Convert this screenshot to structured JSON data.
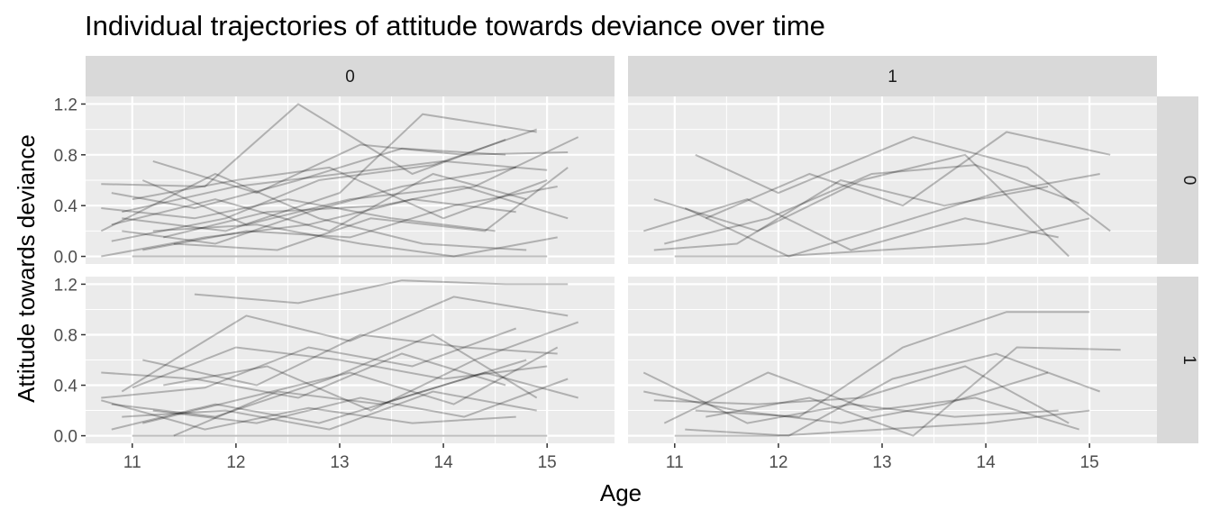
{
  "chart_data": {
    "type": "line",
    "title": "Individual trajectories of attitude towards deviance over time",
    "xlabel": "Age",
    "ylabel": "Attitude towards deviance",
    "xlim": [
      10.55,
      15.65
    ],
    "ylim": [
      -0.06,
      1.26
    ],
    "x_ticks": [
      11,
      12,
      13,
      14,
      15
    ],
    "y_ticks": [
      0.0,
      0.4,
      0.8,
      1.2
    ],
    "y_tick_labels": [
      "0.0",
      "0.4",
      "0.8",
      "1.2"
    ],
    "grid": true,
    "line_color": "#000000",
    "line_alpha": 0.25,
    "facet_columns": [
      "0",
      "1"
    ],
    "facet_rows": [
      "0",
      "1"
    ],
    "panels": [
      {
        "col": "0",
        "row": "0",
        "series": [
          {
            "x": [
              10.7,
              11.7,
              12.6,
              13.7,
              14.6
            ],
            "y": [
              0.57,
              0.55,
              1.2,
              0.65,
              0.92
            ]
          },
          {
            "x": [
              10.8,
              11.9,
              12.8,
              13.9,
              14.9
            ],
            "y": [
              0.12,
              0.3,
              0.6,
              0.72,
              1.0
            ]
          },
          {
            "x": [
              10.9,
              11.8,
              12.7,
              13.6,
              14.7
            ],
            "y": [
              0.2,
              0.1,
              0.35,
              0.55,
              0.7
            ]
          },
          {
            "x": [
              11.0,
              12.0,
              13.0,
              14.0,
              15.0
            ],
            "y": [
              0.0,
              0.0,
              0.0,
              0.0,
              0.0
            ]
          },
          {
            "x": [
              10.7,
              11.6,
              12.5,
              13.5,
              14.5
            ],
            "y": [
              0.38,
              0.3,
              0.45,
              0.3,
              0.2
            ]
          },
          {
            "x": [
              11.1,
              12.1,
              13.1,
              14.1,
              15.1
            ],
            "y": [
              0.05,
              0.2,
              0.15,
              0.4,
              0.55
            ]
          },
          {
            "x": [
              11.2,
              12.2,
              13.2,
              14.2,
              15.2
            ],
            "y": [
              0.75,
              0.5,
              0.88,
              0.8,
              0.82
            ]
          },
          {
            "x": [
              10.8,
              11.8,
              12.9,
              13.9,
              14.8
            ],
            "y": [
              0.25,
              0.45,
              0.2,
              0.65,
              0.45
            ]
          },
          {
            "x": [
              11.3,
              12.3,
              13.4,
              14.3,
              15.3
            ],
            "y": [
              0.15,
              0.35,
              0.4,
              0.55,
              0.94
            ]
          },
          {
            "x": [
              10.9,
              11.9,
              13.0,
              13.8,
              14.9
            ],
            "y": [
              0.3,
              0.2,
              0.5,
              1.12,
              0.98
            ]
          },
          {
            "x": [
              11.0,
              12.0,
              12.9,
              14.0,
              15.0
            ],
            "y": [
              0.45,
              0.6,
              0.7,
              0.3,
              0.6
            ]
          },
          {
            "x": [
              10.7,
              11.7,
              12.7,
              13.7,
              14.7
            ],
            "y": [
              0.0,
              0.15,
              0.25,
              0.45,
              0.35
            ]
          },
          {
            "x": [
              11.4,
              12.4,
              13.3,
              14.4,
              15.2
            ],
            "y": [
              0.1,
              0.05,
              0.3,
              0.2,
              0.7
            ]
          },
          {
            "x": [
              10.8,
              11.6,
              12.6,
              13.6,
              14.6
            ],
            "y": [
              0.5,
              0.38,
              0.6,
              0.85,
              0.8
            ]
          },
          {
            "x": [
              11.2,
              12.2,
              13.2,
              14.1,
              15.1
            ],
            "y": [
              0.2,
              0.25,
              0.1,
              0.0,
              0.15
            ]
          },
          {
            "x": [
              10.9,
              12.0,
              13.0,
              14.0,
              15.0
            ],
            "y": [
              0.35,
              0.55,
              0.65,
              0.75,
              0.68
            ]
          },
          {
            "x": [
              11.1,
              12.1,
              13.1,
              14.2,
              15.2
            ],
            "y": [
              0.6,
              0.25,
              0.45,
              0.55,
              0.3
            ]
          },
          {
            "x": [
              10.7,
              11.8,
              12.8,
              13.8,
              14.8
            ],
            "y": [
              0.2,
              0.65,
              0.3,
              0.1,
              0.05
            ]
          }
        ]
      },
      {
        "col": "1",
        "row": "0",
        "series": [
          {
            "x": [
              10.8,
              11.8,
              12.8,
              13.8,
              14.8
            ],
            "y": [
              0.45,
              0.2,
              0.6,
              0.8,
              0.0
            ]
          },
          {
            "x": [
              11.2,
              12.0,
              13.3,
              14.4,
              15.2
            ],
            "y": [
              0.8,
              0.5,
              0.94,
              0.7,
              0.2
            ]
          },
          {
            "x": [
              10.9,
              11.9,
              12.9,
              13.9,
              14.9
            ],
            "y": [
              0.1,
              0.3,
              0.65,
              0.72,
              0.42
            ]
          },
          {
            "x": [
              11.0,
              12.0,
              13.0,
              14.0,
              15.0
            ],
            "y": [
              0.0,
              0.0,
              0.05,
              0.1,
              0.3
            ]
          },
          {
            "x": [
              10.7,
              11.7,
              12.7,
              13.8,
              14.7
            ],
            "y": [
              0.2,
              0.45,
              0.05,
              0.3,
              0.15
            ]
          },
          {
            "x": [
              11.3,
              12.3,
              13.2,
              14.2,
              15.2
            ],
            "y": [
              0.3,
              0.65,
              0.4,
              0.98,
              0.8
            ]
          },
          {
            "x": [
              10.8,
              11.6,
              12.6,
              13.6,
              14.6
            ],
            "y": [
              0.05,
              0.1,
              0.6,
              0.4,
              0.55
            ]
          },
          {
            "x": [
              11.1,
              12.1,
              13.1,
              14.1,
              15.1
            ],
            "y": [
              0.38,
              0.0,
              0.25,
              0.5,
              0.65
            ]
          }
        ]
      },
      {
        "col": "0",
        "row": "1",
        "series": [
          {
            "x": [
              11.6,
              12.6,
              13.6,
              14.6,
              15.2
            ],
            "y": [
              1.12,
              1.05,
              1.23,
              1.2,
              1.2
            ]
          },
          {
            "x": [
              10.7,
              11.7,
              12.7,
              13.7,
              14.7
            ],
            "y": [
              0.3,
              0.38,
              0.7,
              0.55,
              0.85
            ]
          },
          {
            "x": [
              10.8,
              11.8,
              12.8,
              13.8,
              14.8
            ],
            "y": [
              0.05,
              0.25,
              0.1,
              0.35,
              0.6
            ]
          },
          {
            "x": [
              11.0,
              12.0,
              13.0,
              14.0,
              15.0
            ],
            "y": [
              0.0,
              0.0,
              0.0,
              0.0,
              0.0
            ]
          },
          {
            "x": [
              10.9,
              12.1,
              13.1,
              14.1,
              15.2
            ],
            "y": [
              0.35,
              0.95,
              0.75,
              1.1,
              0.95
            ]
          },
          {
            "x": [
              11.2,
              12.2,
              13.2,
              14.2,
              15.2
            ],
            "y": [
              0.2,
              0.1,
              0.3,
              0.15,
              0.45
            ]
          },
          {
            "x": [
              10.7,
              11.6,
              12.6,
              13.6,
              14.6
            ],
            "y": [
              0.5,
              0.45,
              0.3,
              0.65,
              0.4
            ]
          },
          {
            "x": [
              11.1,
              12.1,
              13.1,
              14.1,
              15.1
            ],
            "y": [
              0.1,
              0.3,
              0.5,
              0.25,
              0.7
            ]
          },
          {
            "x": [
              10.8,
              11.8,
              12.9,
              13.9,
              14.9
            ],
            "y": [
              0.25,
              0.15,
              0.45,
              0.8,
              0.3
            ]
          },
          {
            "x": [
              11.3,
              12.3,
              13.3,
              14.3,
              15.3
            ],
            "y": [
              0.4,
              0.55,
              0.2,
              0.6,
              0.9
            ]
          },
          {
            "x": [
              10.9,
              11.9,
              12.9,
              13.9,
              14.9
            ],
            "y": [
              0.15,
              0.2,
              0.05,
              0.35,
              0.2
            ]
          },
          {
            "x": [
              11.0,
              12.0,
              13.0,
              14.0,
              15.0
            ],
            "y": [
              0.38,
              0.7,
              0.6,
              0.45,
              0.55
            ]
          },
          {
            "x": [
              10.7,
              11.7,
              12.7,
              13.7,
              14.7
            ],
            "y": [
              0.28,
              0.05,
              0.22,
              0.1,
              0.15
            ]
          },
          {
            "x": [
              11.4,
              12.4,
              13.4,
              14.4,
              15.3
            ],
            "y": [
              0.0,
              0.35,
              0.25,
              0.5,
              0.3
            ]
          },
          {
            "x": [
              11.1,
              12.2,
              13.2,
              14.2,
              15.1
            ],
            "y": [
              0.6,
              0.4,
              0.8,
              0.7,
              0.65
            ]
          }
        ]
      },
      {
        "col": "1",
        "row": "1",
        "series": [
          {
            "x": [
              10.7,
              11.7,
              12.7,
              13.7,
              14.7
            ],
            "y": [
              0.5,
              0.1,
              0.25,
              0.15,
              0.2
            ]
          },
          {
            "x": [
              10.9,
              11.9,
              12.9,
              13.9,
              14.9
            ],
            "y": [
              0.1,
              0.5,
              0.2,
              0.3,
              0.05
            ]
          },
          {
            "x": [
              11.0,
              12.0,
              13.0,
              14.0,
              15.0
            ],
            "y": [
              0.0,
              0.0,
              0.05,
              0.1,
              0.2
            ]
          },
          {
            "x": [
              11.2,
              12.2,
              13.2,
              14.2,
              15.0
            ],
            "y": [
              0.2,
              0.15,
              0.7,
              0.98,
              0.98
            ]
          },
          {
            "x": [
              10.8,
              11.8,
              12.8,
              13.8,
              14.8
            ],
            "y": [
              0.28,
              0.25,
              0.3,
              0.55,
              0.1
            ]
          },
          {
            "x": [
              11.1,
              12.1,
              13.1,
              14.1,
              15.1
            ],
            "y": [
              0.05,
              0.0,
              0.45,
              0.65,
              0.35
            ]
          },
          {
            "x": [
              11.3,
              12.3,
              13.3,
              14.3,
              15.3
            ],
            "y": [
              0.15,
              0.3,
              0.0,
              0.7,
              0.68
            ]
          },
          {
            "x": [
              10.7,
              11.6,
              12.6,
              13.6,
              14.6
            ],
            "y": [
              0.35,
              0.2,
              0.1,
              0.25,
              0.5
            ]
          }
        ]
      }
    ]
  }
}
